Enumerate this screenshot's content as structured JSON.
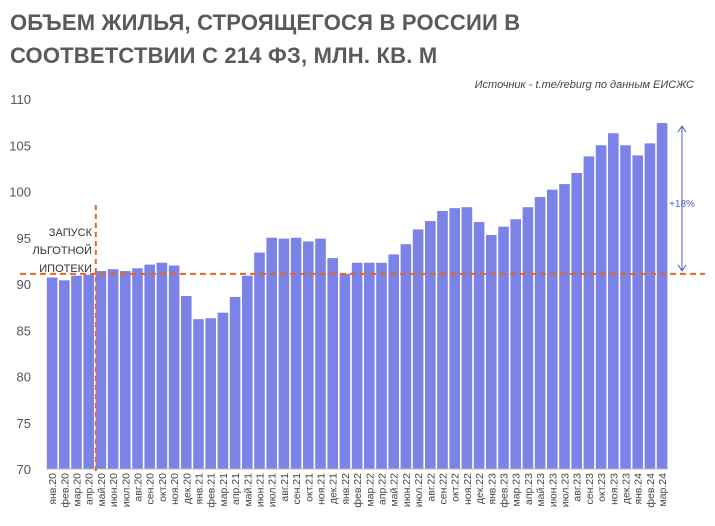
{
  "title": "ОБЪЕМ ЖИЛЬЯ, СТРОЯЩЕГОСЯ В РОССИИ В СООТВЕТСТВИИ С 214 ФЗ, МЛН. КВ. М",
  "source": "Источник - t.me/reburg по данным ЕИСЖС",
  "chart_data": {
    "type": "bar",
    "title": "ОБЪЕМ ЖИЛЬЯ, СТРОЯЩЕГОСЯ В РОССИИ В СООТВЕТСТВИИ С 214 ФЗ, МЛН. КВ. М",
    "xlabel": "",
    "ylabel": "",
    "ylim": [
      70,
      110
    ],
    "yticks": [
      70,
      75,
      80,
      85,
      90,
      95,
      100,
      105,
      110
    ],
    "grid": false,
    "bar_color": "#7b83e6",
    "categories": [
      "янв.20",
      "фев.20",
      "мар.20",
      "апр.20",
      "май.20",
      "июн.20",
      "июл.20",
      "авг.20",
      "сен.20",
      "окт.20",
      "ноя.20",
      "дек.20",
      "янв.21",
      "фев.21",
      "мар.21",
      "апр.21",
      "май.21",
      "июн.21",
      "июл.21",
      "авг.21",
      "сен.21",
      "окт.21",
      "ноя.21",
      "дек.21",
      "янв.22",
      "фев.22",
      "мар.22",
      "апр.22",
      "май.22",
      "июн.22",
      "июл.22",
      "авг.22",
      "сен.22",
      "окт.22",
      "ноя.22",
      "дек.22",
      "янв.23",
      "фев.23",
      "мар.23",
      "апр.23",
      "май.23",
      "июн.23",
      "июл.23",
      "авг.23",
      "сен.23",
      "окт.23",
      "ноя.23",
      "дек.23",
      "янв.24",
      "фев.24",
      "мар.24"
    ],
    "values": [
      90.7,
      90.4,
      90.9,
      91.0,
      91.4,
      91.6,
      91.4,
      91.7,
      92.1,
      92.3,
      92.0,
      88.7,
      86.2,
      86.3,
      86.9,
      88.6,
      90.9,
      93.4,
      95.0,
      94.9,
      95.0,
      94.6,
      94.9,
      92.8,
      91.1,
      92.3,
      92.3,
      92.3,
      93.2,
      94.3,
      95.9,
      96.8,
      97.9,
      98.2,
      98.3,
      96.7,
      95.3,
      96.2,
      97.0,
      98.3,
      99.4,
      100.2,
      100.8,
      102.0,
      103.8,
      105.0,
      106.3,
      105.0,
      103.9,
      105.2,
      107.4
    ],
    "annotations": {
      "event_label_lines": [
        "ЗАПУСК",
        "ЛЬГОТНОЙ",
        "ИПОТЕКИ"
      ],
      "event_category": "апр.20",
      "reference_value": 91.1,
      "reference_color": "#e8651f",
      "growth_label": "+18%",
      "growth_from": 91.1,
      "growth_to": 107.4,
      "growth_color": "#4a62c4"
    }
  }
}
